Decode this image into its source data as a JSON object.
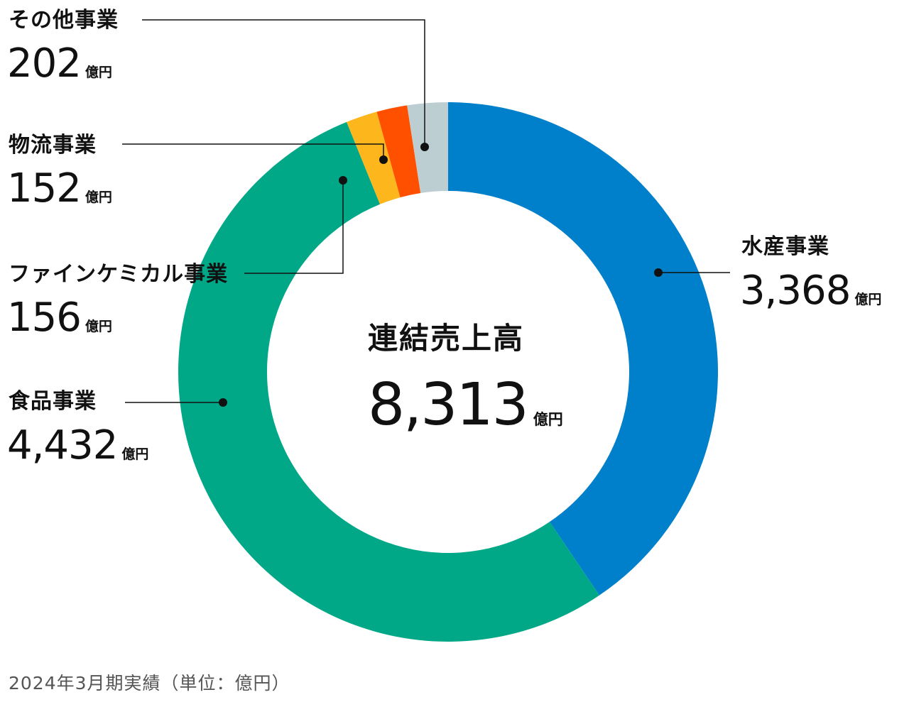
{
  "chart_data": {
    "type": "pie",
    "donut": true,
    "center": {
      "title": "連結売上高",
      "value": "8,313",
      "unit": "億円"
    },
    "slices": [
      {
        "name": "水産事業",
        "value": 3368,
        "display": "3,368",
        "unit": "億円",
        "color": "#0080CA"
      },
      {
        "name": "食品事業",
        "value": 4432,
        "display": "4,432",
        "unit": "億円",
        "color": "#00A887"
      },
      {
        "name": "ファインケミカル事業",
        "value": 156,
        "display": "156",
        "unit": "億円",
        "color": "#FDB71C"
      },
      {
        "name": "物流事業",
        "value": 152,
        "display": "152",
        "unit": "億円",
        "color": "#FF5000"
      },
      {
        "name": "その他事業",
        "value": 202,
        "display": "202",
        "unit": "億円",
        "color": "#BCCED2"
      }
    ],
    "footnote": "2024年3月期実績（単位：億円）"
  }
}
